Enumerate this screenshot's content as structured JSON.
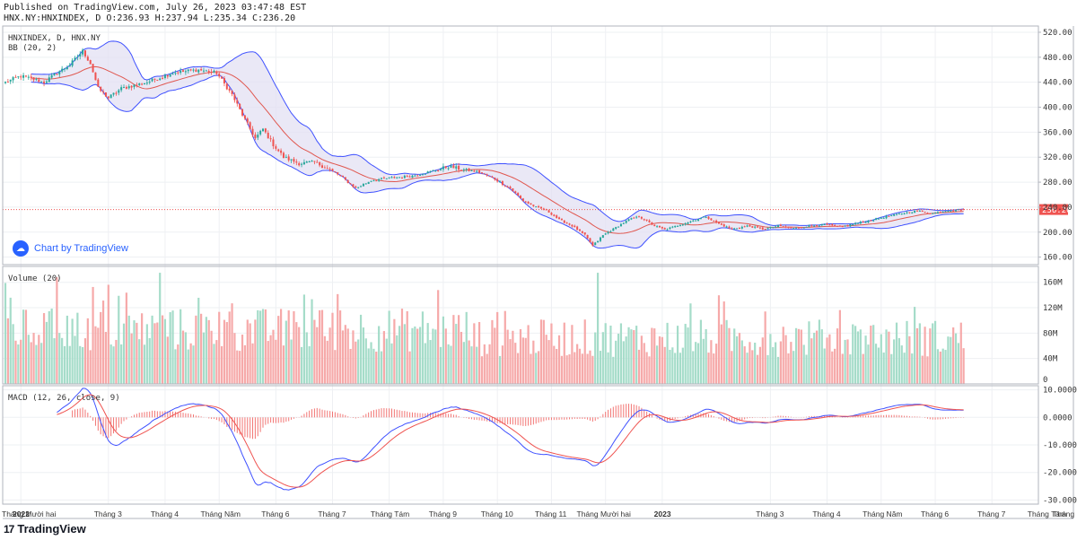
{
  "header": {
    "published": "Published on TradingView.com, July 26, 2023 03:47:48 EST",
    "ohlc": "HNX.NY:HNXINDEX, D O:236.93 H:237.94 L:235.34 C:236.20"
  },
  "branding": {
    "chart_by": "Chart by TradingView",
    "footer_logo": "TradingView",
    "logo_mark": "17"
  },
  "colors": {
    "up": "#26a69a",
    "down": "#ef5350",
    "vol_up": "#a5dcc9",
    "vol_down": "#f6a9a9",
    "bb_fill": "#e3e0f3",
    "bb_band": "#3f51ff",
    "bb_basis": "#e0574f",
    "macd_line": "#3f51ff",
    "signal_line": "#ef5350",
    "last_price_bg": "#ef5350"
  },
  "chart_data": [
    {
      "id": "price",
      "type": "candlestick",
      "title": "HNXINDEX, D, HNX.NY",
      "indicator_label": "BB (20, 2)",
      "ylim": [
        148,
        530
      ],
      "yticks": [
        "160.00",
        "200.00",
        "240.00",
        "280.00",
        "320.00",
        "360.00",
        "400.00",
        "440.00",
        "480.00",
        "520.00"
      ],
      "ytick_values": [
        160,
        200,
        240,
        280,
        320,
        360,
        400,
        440,
        480,
        520
      ],
      "last_price": 236.2,
      "last_price_label": "236.20",
      "close_anchors": [
        [
          0,
          440
        ],
        [
          6,
          450
        ],
        [
          15,
          440
        ],
        [
          20,
          455
        ],
        [
          25,
          468
        ],
        [
          30,
          490
        ],
        [
          33,
          470
        ],
        [
          36,
          430
        ],
        [
          40,
          415
        ],
        [
          45,
          430
        ],
        [
          55,
          440
        ],
        [
          65,
          455
        ],
        [
          75,
          460
        ],
        [
          82,
          455
        ],
        [
          88,
          420
        ],
        [
          93,
          380
        ],
        [
          97,
          350
        ],
        [
          100,
          365
        ],
        [
          104,
          340
        ],
        [
          108,
          320
        ],
        [
          114,
          310
        ],
        [
          120,
          312
        ],
        [
          126,
          300
        ],
        [
          130,
          290
        ],
        [
          136,
          270
        ],
        [
          142,
          283
        ],
        [
          150,
          287
        ],
        [
          158,
          290
        ],
        [
          166,
          298
        ],
        [
          172,
          305
        ],
        [
          178,
          300
        ],
        [
          184,
          296
        ],
        [
          190,
          285
        ],
        [
          196,
          270
        ],
        [
          201,
          250
        ],
        [
          206,
          240
        ],
        [
          210,
          235
        ],
        [
          215,
          220
        ],
        [
          220,
          210
        ],
        [
          225,
          195
        ],
        [
          228,
          178
        ],
        [
          232,
          195
        ],
        [
          236,
          205
        ],
        [
          242,
          220
        ],
        [
          246,
          225
        ],
        [
          252,
          210
        ],
        [
          256,
          204
        ],
        [
          262,
          212
        ],
        [
          268,
          220
        ],
        [
          272,
          225
        ],
        [
          276,
          215
        ],
        [
          282,
          205
        ],
        [
          288,
          210
        ],
        [
          294,
          205
        ],
        [
          300,
          210
        ],
        [
          306,
          206
        ],
        [
          312,
          210
        ],
        [
          318,
          212
        ],
        [
          324,
          208
        ],
        [
          330,
          214
        ],
        [
          336,
          219
        ],
        [
          342,
          225
        ],
        [
          348,
          230
        ],
        [
          354,
          234
        ],
        [
          360,
          230
        ],
        [
          366,
          235
        ],
        [
          372,
          236.2
        ]
      ],
      "volume": {
        "label": "Volume (20)",
        "ylim": [
          0,
          185
        ],
        "yticks": [
          "40M",
          "80M",
          "120M",
          "160M"
        ],
        "ytick_values": [
          40,
          80,
          120,
          160
        ],
        "last_value": "0"
      },
      "macd": {
        "label": "MACD (12, 26, close, 9)",
        "ylim": [
          -31.5,
          11.5
        ],
        "yticks": [
          "10.0000",
          "0.0000",
          "-10.0000",
          "-20.0000",
          "-30.0000"
        ],
        "ytick_values": [
          10,
          0,
          -10,
          -20,
          -30
        ]
      },
      "x_labels": [
        {
          "label": "Tháng Mười hai",
          "i": -5
        },
        {
          "label": "2022",
          "i": 6,
          "bold": true
        },
        {
          "label": "Tháng 3",
          "i": 40
        },
        {
          "label": "Tháng 4",
          "i": 62
        },
        {
          "label": "Tháng Năm",
          "i": 83
        },
        {
          "label": "Tháng 6",
          "i": 105
        },
        {
          "label": "Tháng 7",
          "i": 127
        },
        {
          "label": "Tháng Tám",
          "i": 149
        },
        {
          "label": "Tháng 9",
          "i": 170
        },
        {
          "label": "Tháng 10",
          "i": 191
        },
        {
          "label": "Tháng 11",
          "i": 212
        },
        {
          "label": "Tháng Mười hai",
          "i": 233
        },
        {
          "label": "2023",
          "i": 255,
          "bold": true
        },
        {
          "label": "Tháng 3",
          "i": 297
        },
        {
          "label": "Tháng 4",
          "i": 319
        },
        {
          "label": "Tháng Năm",
          "i": 340
        },
        {
          "label": "Tháng 6",
          "i": 361
        },
        {
          "label": "Tháng 7",
          "i": 383
        },
        {
          "label": "Tháng Tám",
          "i": 404
        },
        {
          "label": "Tháng",
          "i": 426
        }
      ]
    }
  ]
}
